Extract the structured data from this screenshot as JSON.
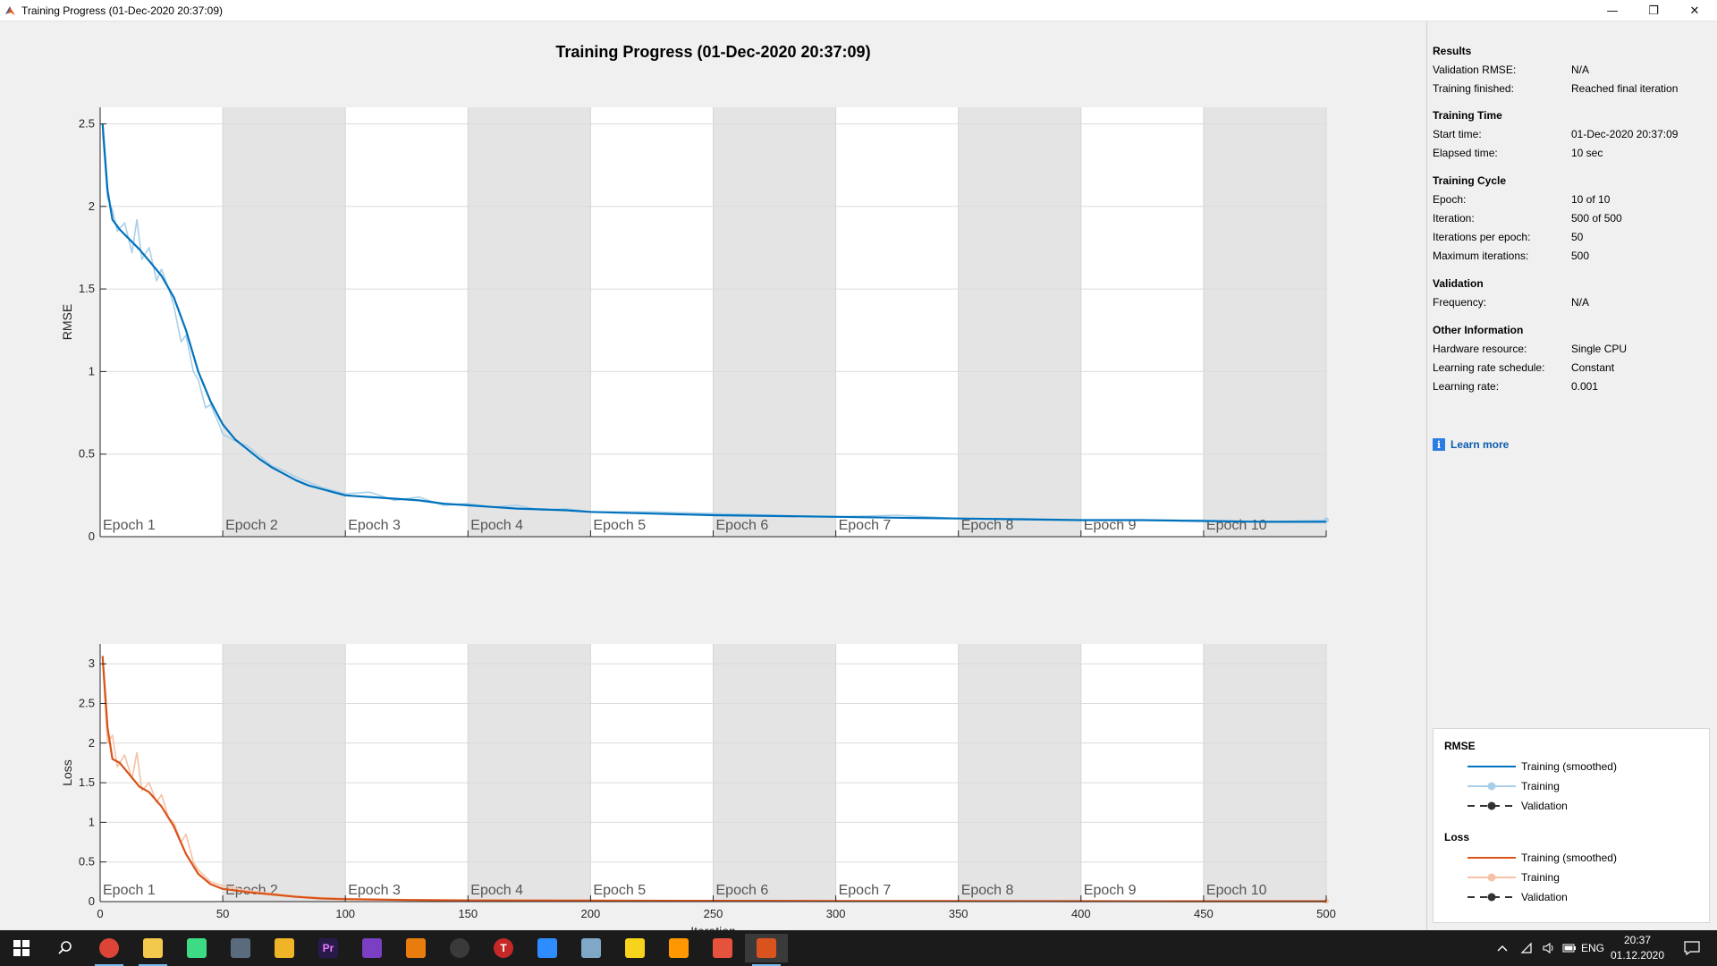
{
  "window": {
    "title": "Training Progress (01-Dec-2020 20:37:09)",
    "controls": {
      "minimize": "—",
      "restore": "❐",
      "close": "✕"
    }
  },
  "plot_title": "Training Progress (01-Dec-2020 20:37:09)",
  "epoch_labels": [
    "Epoch 1",
    "Epoch 2",
    "Epoch 3",
    "Epoch 4",
    "Epoch 5",
    "Epoch 6",
    "Epoch 7",
    "Epoch 8",
    "Epoch 9",
    "Epoch 10"
  ],
  "chart_data": [
    {
      "type": "line",
      "ylabel": "RMSE",
      "xlabel": "Iteration",
      "xlim": [
        0,
        500
      ],
      "ylim": [
        0,
        2.6
      ],
      "xticks": [
        "0",
        "50",
        "100",
        "150",
        "200",
        "250",
        "300",
        "350",
        "400",
        "450",
        "500"
      ],
      "yticks": [
        "0",
        "0.5",
        "1",
        "1.5",
        "2",
        "2.5"
      ],
      "ytick_values": [
        0,
        0.5,
        1,
        1.5,
        2,
        2.5
      ],
      "grid": true,
      "series": [
        {
          "name": "Training (smoothed)",
          "color": "#0072bd",
          "x": [
            1,
            3,
            5,
            8,
            12,
            16,
            20,
            25,
            30,
            35,
            40,
            45,
            50,
            55,
            60,
            65,
            70,
            75,
            80,
            85,
            90,
            95,
            100,
            110,
            120,
            130,
            140,
            150,
            160,
            170,
            180,
            190,
            200,
            225,
            250,
            275,
            300,
            325,
            350,
            375,
            400,
            425,
            450,
            475,
            500
          ],
          "y": [
            2.5,
            2.1,
            1.92,
            1.86,
            1.8,
            1.74,
            1.67,
            1.58,
            1.45,
            1.25,
            1.0,
            0.82,
            0.68,
            0.59,
            0.53,
            0.47,
            0.42,
            0.38,
            0.34,
            0.31,
            0.29,
            0.27,
            0.25,
            0.24,
            0.23,
            0.22,
            0.2,
            0.19,
            0.18,
            0.17,
            0.165,
            0.16,
            0.15,
            0.14,
            0.13,
            0.125,
            0.12,
            0.115,
            0.11,
            0.105,
            0.1,
            0.1,
            0.095,
            0.09,
            0.09
          ]
        },
        {
          "name": "Training",
          "color": "#a9cfe8",
          "x": [
            1,
            3,
            5,
            7,
            10,
            13,
            15,
            17,
            20,
            23,
            25,
            28,
            30,
            33,
            35,
            38,
            40,
            43,
            45,
            48,
            50,
            55,
            60,
            65,
            70,
            75,
            80,
            85,
            90,
            95,
            100,
            110,
            120,
            130,
            140,
            150,
            160,
            170,
            180,
            190,
            200,
            225,
            250,
            275,
            300,
            325,
            350,
            375,
            400,
            425,
            450,
            475,
            500
          ],
          "y": [
            2.45,
            2.05,
            1.98,
            1.85,
            1.9,
            1.72,
            1.92,
            1.68,
            1.75,
            1.55,
            1.62,
            1.5,
            1.4,
            1.18,
            1.22,
            1.0,
            0.95,
            0.78,
            0.8,
            0.7,
            0.62,
            0.58,
            0.55,
            0.49,
            0.43,
            0.4,
            0.36,
            0.33,
            0.3,
            0.28,
            0.26,
            0.27,
            0.22,
            0.24,
            0.19,
            0.2,
            0.18,
            0.19,
            0.16,
            0.17,
            0.15,
            0.15,
            0.14,
            0.13,
            0.12,
            0.13,
            0.11,
            0.11,
            0.1,
            0.1,
            0.1,
            0.09,
            0.1
          ]
        },
        {
          "name": "Validation",
          "color": "#333333",
          "x": [],
          "y": []
        }
      ]
    },
    {
      "type": "line",
      "ylabel": "Loss",
      "xlabel": "Iteration",
      "xlim": [
        0,
        500
      ],
      "ylim": [
        0,
        3.25
      ],
      "xticks": [
        "0",
        "50",
        "100",
        "150",
        "200",
        "250",
        "300",
        "350",
        "400",
        "450",
        "500"
      ],
      "yticks": [
        "0",
        "0.5",
        "1",
        "1.5",
        "2",
        "2.5",
        "3"
      ],
      "ytick_values": [
        0,
        0.5,
        1,
        1.5,
        2,
        2.5,
        3
      ],
      "grid": true,
      "series": [
        {
          "name": "Training (smoothed)",
          "color": "#d95319",
          "x": [
            1,
            3,
            5,
            8,
            12,
            16,
            20,
            25,
            30,
            35,
            40,
            45,
            50,
            60,
            70,
            80,
            90,
            100,
            125,
            150,
            200,
            250,
            300,
            350,
            400,
            450,
            500
          ],
          "y": [
            3.1,
            2.2,
            1.8,
            1.75,
            1.6,
            1.45,
            1.38,
            1.2,
            0.95,
            0.6,
            0.35,
            0.22,
            0.16,
            0.12,
            0.09,
            0.06,
            0.04,
            0.03,
            0.02,
            0.015,
            0.012,
            0.01,
            0.008,
            0.007,
            0.006,
            0.005,
            0.005
          ]
        },
        {
          "name": "Training",
          "color": "#f4c2a6",
          "x": [
            1,
            3,
            5,
            7,
            10,
            13,
            15,
            17,
            20,
            23,
            25,
            28,
            30,
            33,
            35,
            38,
            40,
            45,
            50,
            60,
            70,
            80,
            90,
            100,
            125,
            150,
            200,
            250,
            300,
            350,
            400,
            450,
            500
          ],
          "y": [
            3.05,
            2.0,
            2.1,
            1.7,
            1.85,
            1.55,
            1.88,
            1.4,
            1.5,
            1.25,
            1.35,
            1.05,
            1.0,
            0.75,
            0.85,
            0.5,
            0.4,
            0.25,
            0.2,
            0.14,
            0.1,
            0.07,
            0.05,
            0.04,
            0.025,
            0.02,
            0.015,
            0.01,
            0.01,
            0.008,
            0.007,
            0.006,
            0.006
          ]
        },
        {
          "name": "Validation",
          "color": "#333333",
          "x": [],
          "y": []
        }
      ]
    }
  ],
  "info": {
    "results": {
      "title": "Results",
      "rows": [
        {
          "label": "Validation RMSE:",
          "value": "N/A"
        },
        {
          "label": "Training finished:",
          "value": "Reached final iteration"
        }
      ]
    },
    "training_time": {
      "title": "Training Time",
      "rows": [
        {
          "label": "Start time:",
          "value": "01-Dec-2020 20:37:09"
        },
        {
          "label": "Elapsed time:",
          "value": "10 sec"
        }
      ]
    },
    "training_cycle": {
      "title": "Training Cycle",
      "rows": [
        {
          "label": "Epoch:",
          "value": "10 of 10"
        },
        {
          "label": "Iteration:",
          "value": "500 of 500"
        },
        {
          "label": "Iterations per epoch:",
          "value": "50"
        },
        {
          "label": "Maximum iterations:",
          "value": "500"
        }
      ]
    },
    "validation": {
      "title": "Validation",
      "rows": [
        {
          "label": "Frequency:",
          "value": "N/A"
        }
      ]
    },
    "other": {
      "title": "Other Information",
      "rows": [
        {
          "label": "Hardware resource:",
          "value": "Single CPU"
        },
        {
          "label": "Learning rate schedule:",
          "value": "Constant"
        },
        {
          "label": "Learning rate:",
          "value": "0.001"
        }
      ]
    },
    "learn_more": "Learn more",
    "info_glyph": "i"
  },
  "legend": {
    "rmse": {
      "title": "RMSE",
      "items": [
        {
          "label": "Training (smoothed)",
          "color": "#0072bd",
          "style": "solid"
        },
        {
          "label": "Training",
          "color": "#a9cfe8",
          "style": "marker"
        },
        {
          "label": "Validation",
          "color": "#333333",
          "style": "dashed-marker"
        }
      ]
    },
    "loss": {
      "title": "Loss",
      "items": [
        {
          "label": "Training (smoothed)",
          "color": "#d95319",
          "style": "solid"
        },
        {
          "label": "Training",
          "color": "#f4c2a6",
          "style": "marker"
        },
        {
          "label": "Validation",
          "color": "#333333",
          "style": "dashed-marker"
        }
      ]
    }
  },
  "taskbar": {
    "apps": [
      {
        "name": "start-icon"
      },
      {
        "name": "search-icon"
      },
      {
        "name": "chrome-icon"
      },
      {
        "name": "file-explorer-icon"
      },
      {
        "name": "android-studio-icon"
      },
      {
        "name": "calculator-icon"
      },
      {
        "name": "app-tool-icon"
      },
      {
        "name": "premiere-pro-icon",
        "label": "Pr"
      },
      {
        "name": "visual-studio-icon"
      },
      {
        "name": "blender-icon"
      },
      {
        "name": "obs-icon"
      },
      {
        "name": "app-t-icon",
        "label": "T"
      },
      {
        "name": "zoom-icon"
      },
      {
        "name": "app-bird-icon"
      },
      {
        "name": "sticky-notes-icon"
      },
      {
        "name": "sublime-text-icon"
      },
      {
        "name": "app-diamond-icon"
      },
      {
        "name": "matlab-icon"
      }
    ],
    "language": "ENG",
    "time": "20:37",
    "date": "01.12.2020"
  }
}
